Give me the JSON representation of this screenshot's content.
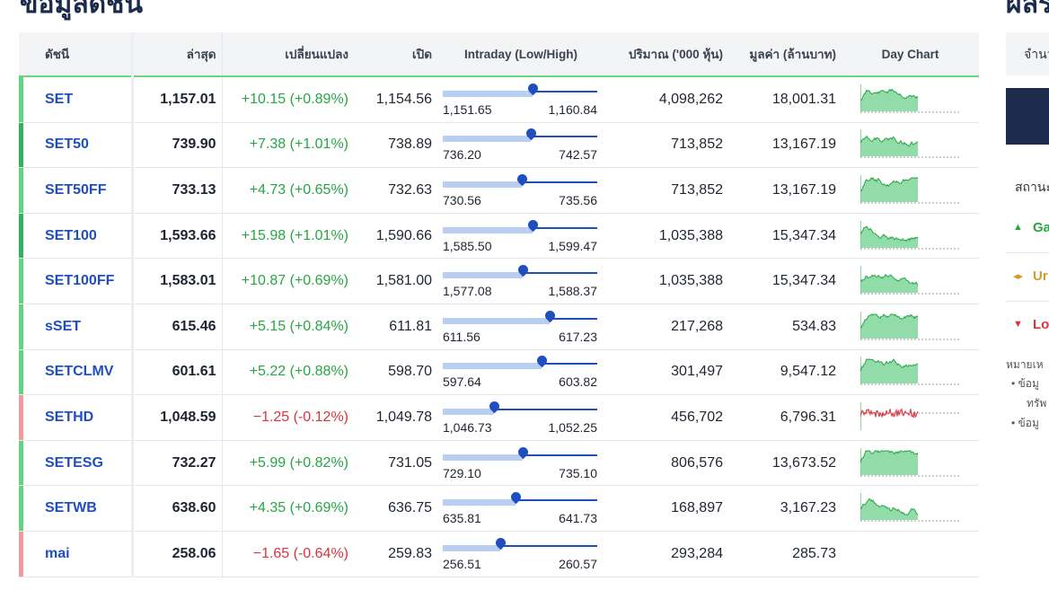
{
  "page_title": "ข้อมูลดัชนี",
  "right_panel": {
    "title": "ผลร",
    "tab_label": "จำนว",
    "status_label": "สถานะ",
    "gainers": "Ga",
    "unchanged": "Ur",
    "losers": "Lo",
    "note_title": "หมายเห",
    "note_1a": "• ข้อมู",
    "note_1b": "ทรัพ",
    "note_2": "• ข้อมู"
  },
  "table": {
    "headers": {
      "name": "ดัชนี",
      "last": "ล่าสุด",
      "change": "เปลี่ยนแปลง",
      "open": "เปิด",
      "intraday": "Intraday (Low/High)",
      "volume": "ปริมาณ ('000 หุ้น)",
      "value": "มูลค่า (ล้านบาท)",
      "chart": "Day Chart"
    },
    "rows": [
      {
        "name": "SET",
        "last": "1,157.01",
        "change": "+10.15 (+0.89%)",
        "open": "1,154.56",
        "low": "1,151.65",
        "high": "1,160.84",
        "position": 0.58,
        "volume": "4,098,262",
        "value": "18,001.31",
        "direction": "up",
        "strong": false,
        "has_chart": true
      },
      {
        "name": "SET50",
        "last": "739.90",
        "change": "+7.38 (+1.01%)",
        "open": "738.89",
        "low": "736.20",
        "high": "742.57",
        "position": 0.57,
        "volume": "713,852",
        "value": "13,167.19",
        "direction": "up",
        "strong": true,
        "has_chart": true
      },
      {
        "name": "SET50FF",
        "last": "733.13",
        "change": "+4.73 (+0.65%)",
        "open": "732.63",
        "low": "730.56",
        "high": "735.56",
        "position": 0.51,
        "volume": "713,852",
        "value": "13,167.19",
        "direction": "up",
        "strong": false,
        "has_chart": true
      },
      {
        "name": "SET100",
        "last": "1,593.66",
        "change": "+15.98 (+1.01%)",
        "open": "1,590.66",
        "low": "1,585.50",
        "high": "1,599.47",
        "position": 0.58,
        "volume": "1,035,388",
        "value": "15,347.34",
        "direction": "up",
        "strong": true,
        "has_chart": true
      },
      {
        "name": "SET100FF",
        "last": "1,583.01",
        "change": "+10.87 (+0.69%)",
        "open": "1,581.00",
        "low": "1,577.08",
        "high": "1,588.37",
        "position": 0.52,
        "volume": "1,035,388",
        "value": "15,347.34",
        "direction": "up",
        "strong": false,
        "has_chart": true
      },
      {
        "name": "sSET",
        "last": "615.46",
        "change": "+5.15 (+0.84%)",
        "open": "611.81",
        "low": "611.56",
        "high": "617.23",
        "position": 0.69,
        "volume": "217,268",
        "value": "534.83",
        "direction": "up",
        "strong": false,
        "has_chart": true
      },
      {
        "name": "SETCLMV",
        "last": "601.61",
        "change": "+5.22 (+0.88%)",
        "open": "598.70",
        "low": "597.64",
        "high": "603.82",
        "position": 0.64,
        "volume": "301,497",
        "value": "9,547.12",
        "direction": "up",
        "strong": false,
        "has_chart": true
      },
      {
        "name": "SETHD",
        "last": "1,048.59",
        "change": "−1.25 (-0.12%)",
        "open": "1,049.78",
        "low": "1,046.73",
        "high": "1,052.25",
        "position": 0.33,
        "volume": "456,702",
        "value": "6,796.31",
        "direction": "down",
        "strong": false,
        "has_chart": true
      },
      {
        "name": "SETESG",
        "last": "732.27",
        "change": "+5.99 (+0.82%)",
        "open": "731.05",
        "low": "729.10",
        "high": "735.10",
        "position": 0.52,
        "volume": "806,576",
        "value": "13,673.52",
        "direction": "up",
        "strong": false,
        "has_chart": true
      },
      {
        "name": "SETWB",
        "last": "638.60",
        "change": "+4.35 (+0.69%)",
        "open": "636.75",
        "low": "635.81",
        "high": "641.73",
        "position": 0.47,
        "volume": "168,897",
        "value": "3,167.23",
        "direction": "up",
        "strong": false,
        "has_chart": true
      },
      {
        "name": "mai",
        "last": "258.06",
        "change": "−1.65 (-0.64%)",
        "open": "259.83",
        "low": "256.51",
        "high": "260.57",
        "position": 0.37,
        "volume": "293,284",
        "value": "285.73",
        "direction": "down",
        "strong": false,
        "has_chart": false
      }
    ]
  },
  "colors": {
    "up": "#27a644",
    "down": "#d9343d",
    "link": "#1f4fbf",
    "header_bg": "#f3f4f6"
  }
}
